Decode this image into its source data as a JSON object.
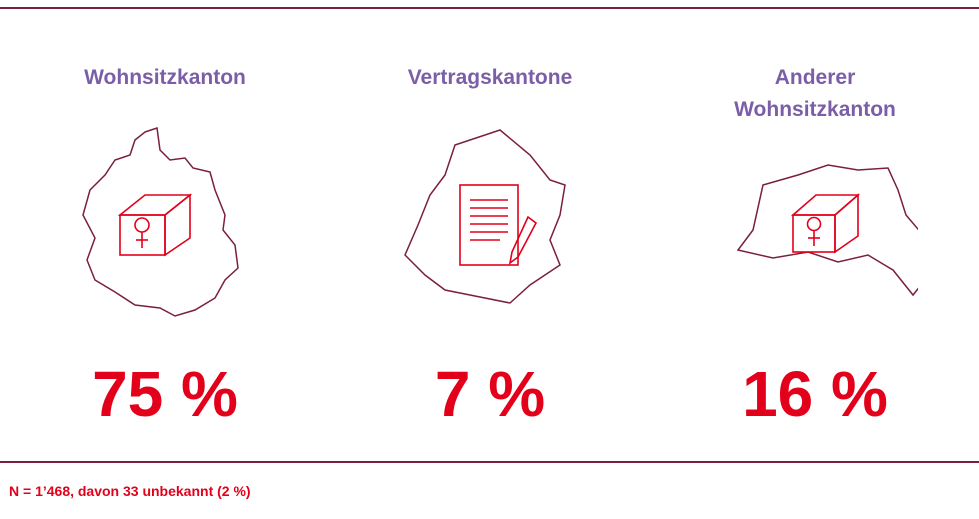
{
  "items": [
    {
      "label": "Wohnsitzkanton",
      "value": "75 %"
    },
    {
      "label": "Vertragskantone",
      "value": "7 %"
    },
    {
      "label": "Anderer Wohnsitzkanton",
      "value": "16 %"
    }
  ],
  "footnote": "N = 1’468, davon 33 unbekannt (2 %)"
}
